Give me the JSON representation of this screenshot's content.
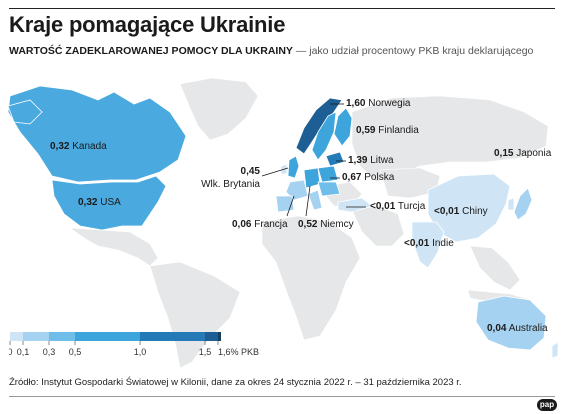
{
  "title": "Kraje pomagające Ukrainie",
  "subtitle_strong": "WARTOŚĆ ZADEKLAROWANEJ POMOCY DLA UKRAINY",
  "subtitle_rest": "— jako udział procentowy PKB kraju deklarującego",
  "countries": [
    {
      "value": "1,60",
      "name": "Norwegia"
    },
    {
      "value": "0,59",
      "name": "Finlandia"
    },
    {
      "value": "1,39",
      "name": "Litwa"
    },
    {
      "value": "0,67",
      "name": "Polska"
    },
    {
      "value": "0,45",
      "name": "Wlk. Brytania"
    },
    {
      "value": "0,06",
      "name": "Francja"
    },
    {
      "value": "0,52",
      "name": "Niemcy"
    },
    {
      "value": "<0,01",
      "name": "Turcja"
    },
    {
      "value": "0,32",
      "name": "Kanada"
    },
    {
      "value": "0,32",
      "name": "USA"
    },
    {
      "value": "0,15",
      "name": "Japonia"
    },
    {
      "value": "<0,01",
      "name": "Chiny"
    },
    {
      "value": "<0,01",
      "name": "Indie"
    },
    {
      "value": "0,04",
      "name": "Australia"
    }
  ],
  "legend": {
    "ticks": [
      "0",
      "0,1",
      "0,3",
      "0,5",
      "1,0",
      "1,5",
      "1,6% PKB"
    ],
    "colors": [
      "#cfe5f6",
      "#a6d2f1",
      "#6fbde9",
      "#3ea4dc",
      "#2479b7",
      "#1d5f95",
      "#173f5f"
    ]
  },
  "source": "Źródło: Instytut Gospodarki Światowej w Kilonii, dane za okres 24 stycznia 2022 r. – 31 października 2023 r.",
  "logo": "pap"
}
